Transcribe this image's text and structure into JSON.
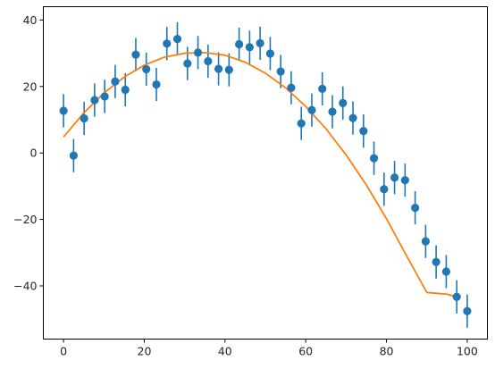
{
  "chart_data": {
    "type": "scatter",
    "title": "",
    "xlabel": "",
    "ylabel": "",
    "xlim": [
      -5,
      105
    ],
    "ylim": [
      -56,
      44
    ],
    "xticks": [
      0,
      20,
      40,
      60,
      80,
      100
    ],
    "yticks": [
      -40,
      -20,
      0,
      20,
      40
    ],
    "grid": false,
    "legend": "none",
    "colors": {
      "points": "#1f77b4",
      "fit": "#ff7f0e"
    },
    "series": [
      {
        "kind": "errorbar-scatter",
        "x": [
          0,
          2.5,
          5.1,
          7.7,
          10.2,
          12.8,
          15.3,
          17.9,
          20.5,
          23.0,
          25.6,
          28.2,
          30.7,
          33.3,
          35.8,
          38.4,
          41.0,
          43.5,
          46.1,
          48.7,
          51.2,
          53.8,
          56.4,
          58.9,
          61.5,
          64.1,
          66.6,
          69.2,
          71.7,
          74.3,
          76.9,
          79.4,
          82.0,
          84.6,
          87.1,
          89.7,
          92.3,
          94.8,
          97.4,
          100
        ],
        "y": [
          12.7,
          -0.8,
          10.4,
          15.9,
          17.0,
          21.5,
          19.0,
          29.6,
          25.2,
          20.6,
          32.9,
          34.3,
          26.9,
          30.2,
          27.6,
          25.3,
          25.0,
          32.7,
          31.8,
          33.0,
          29.9,
          24.5,
          19.6,
          8.9,
          12.9,
          19.3,
          12.4,
          15.0,
          10.5,
          6.6,
          -1.6,
          -10.9,
          -7.4,
          -8.2,
          -16.5,
          -26.6,
          -32.8,
          -35.7,
          -43.3,
          -47.6
        ],
        "yerr": 5
      },
      {
        "kind": "fit-line",
        "x": [
          0,
          5,
          10,
          15,
          20,
          25,
          30,
          35,
          40,
          45,
          50,
          55,
          60,
          65,
          70,
          75,
          80,
          85,
          90,
          95,
          98
        ],
        "y": [
          4.8,
          12.0,
          18.0,
          22.8,
          26.4,
          28.8,
          30.0,
          30.2,
          29.4,
          27.3,
          24.0,
          19.6,
          14.0,
          7.3,
          -0.6,
          -9.6,
          -19.8,
          -31.0,
          -42.0,
          -42.5,
          -43.5
        ]
      }
    ]
  }
}
